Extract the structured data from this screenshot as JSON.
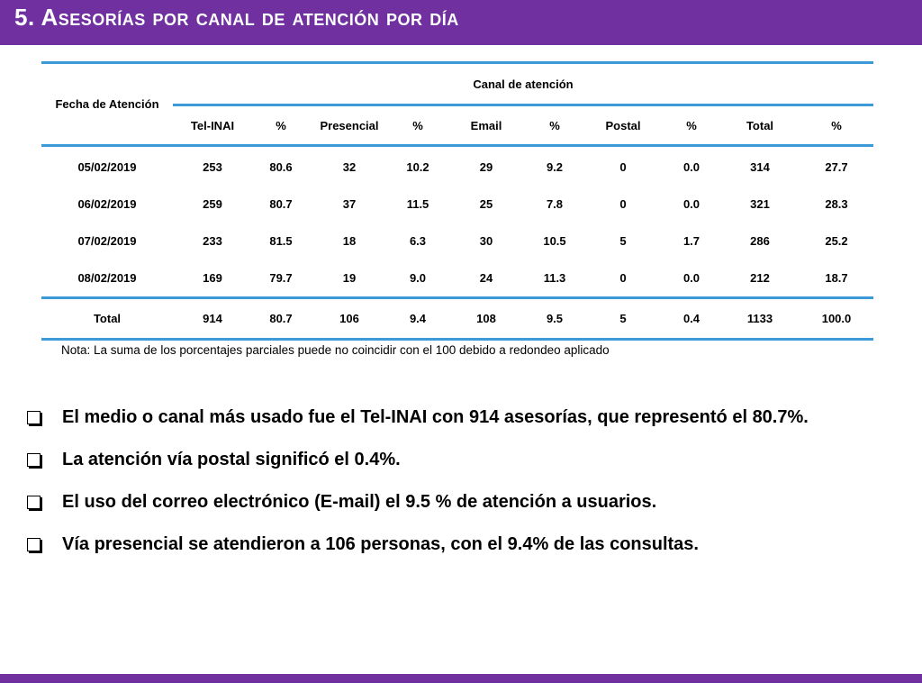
{
  "title": "5. Asesorías por canal de atención por día",
  "colors": {
    "brand_purple": "#7030a0",
    "rule_blue": "#3d9ad8"
  },
  "table": {
    "fecha_header": "Fecha de Atención",
    "group_header": "Canal de atención",
    "columns": [
      "Tel-INAI",
      "%",
      "Presencial",
      "%",
      "Email",
      "%",
      "Postal",
      "%",
      "Total",
      "%"
    ],
    "rows": [
      {
        "fecha": "05/02/2019",
        "values": [
          "253",
          "80.6",
          "32",
          "10.2",
          "29",
          "9.2",
          "0",
          "0.0",
          "314",
          "27.7"
        ]
      },
      {
        "fecha": "06/02/2019",
        "values": [
          "259",
          "80.7",
          "37",
          "11.5",
          "25",
          "7.8",
          "0",
          "0.0",
          "321",
          "28.3"
        ]
      },
      {
        "fecha": "07/02/2019",
        "values": [
          "233",
          "81.5",
          "18",
          "6.3",
          "30",
          "10.5",
          "5",
          "1.7",
          "286",
          "25.2"
        ]
      },
      {
        "fecha": "08/02/2019",
        "values": [
          "169",
          "79.7",
          "19",
          "9.0",
          "24",
          "11.3",
          "0",
          "0.0",
          "212",
          "18.7"
        ]
      }
    ],
    "total": {
      "label": "Total",
      "values": [
        "914",
        "80.7",
        "106",
        "9.4",
        "108",
        "9.5",
        "5",
        "0.4",
        "1133",
        "100.0"
      ]
    }
  },
  "note": "Nota: La suma de los porcentajes parciales puede no coincidir con el 100 debido a redondeo aplicado",
  "bullets": [
    "El medio o canal más usado fue el Tel-INAI con 914 asesorías, que representó el 80.7%.",
    "La atención vía postal significó el 0.4%.",
    "El uso del correo electrónico (E-mail) el 9.5 % de atención a usuarios.",
    "Vía presencial se atendieron a 106 personas, con el 9.4% de las consultas."
  ]
}
